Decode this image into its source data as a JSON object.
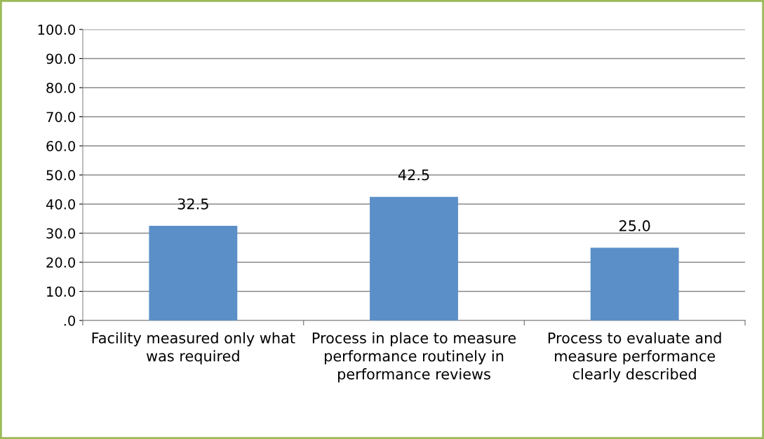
{
  "chart_data": {
    "type": "bar",
    "categories": [
      "Facility measured only what was required",
      "Process in place to measure performance routinely in performance reviews",
      "Process to evaluate and measure performance clearly described"
    ],
    "values": [
      32.5,
      42.5,
      25.0
    ],
    "value_labels": [
      "32.5",
      "42.5",
      "25.0"
    ],
    "color": "#5b8fc7",
    "ylim": [
      0,
      100
    ],
    "yticks": [
      {
        "value": 0,
        "label": ".0"
      },
      {
        "value": 10,
        "label": "10.0"
      },
      {
        "value": 20,
        "label": "20.0"
      },
      {
        "value": 30,
        "label": "30.0"
      },
      {
        "value": 40,
        "label": "40.0"
      },
      {
        "value": 50,
        "label": "50.0"
      },
      {
        "value": 60,
        "label": "60.0"
      },
      {
        "value": 70,
        "label": "70.0"
      },
      {
        "value": 80,
        "label": "80.0"
      },
      {
        "value": 90,
        "label": "90.0"
      },
      {
        "value": 100,
        "label": "100.0"
      }
    ],
    "grid": "y",
    "legend": false
  }
}
